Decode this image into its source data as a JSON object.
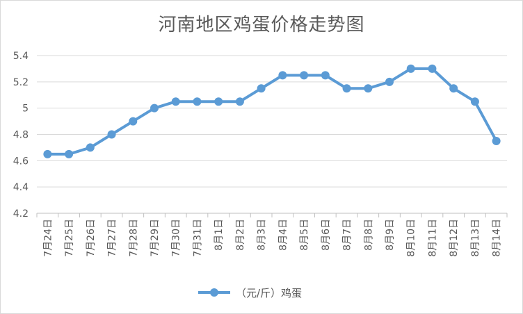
{
  "chart_data": {
    "type": "line",
    "title": "河南地区鸡蛋价格走势图",
    "categories": [
      "7月24日",
      "7月25日",
      "7月26日",
      "7月27日",
      "7月28日",
      "7月29日",
      "7月30日",
      "7月31日",
      "8月1日",
      "8月2日",
      "8月3日",
      "8月4日",
      "8月5日",
      "8月6日",
      "8月7日",
      "8月8日",
      "8月9日",
      "8月10日",
      "8月11日",
      "8月12日",
      "8月13日",
      "8月14日"
    ],
    "series": [
      {
        "name": "（元/斤）鸡蛋",
        "values": [
          4.65,
          4.65,
          4.7,
          4.8,
          4.9,
          5.0,
          5.05,
          5.05,
          5.05,
          5.05,
          5.15,
          5.25,
          5.25,
          5.25,
          5.15,
          5.15,
          5.2,
          5.3,
          5.3,
          5.15,
          5.05,
          4.75
        ]
      }
    ],
    "yticks": [
      "4.2",
      "4.4",
      "4.6",
      "4.8",
      "5",
      "5.2",
      "5.4"
    ],
    "ylim": [
      4.2,
      5.4
    ],
    "grid": true,
    "legend_position": "bottom",
    "color": "#5b9bd5"
  }
}
